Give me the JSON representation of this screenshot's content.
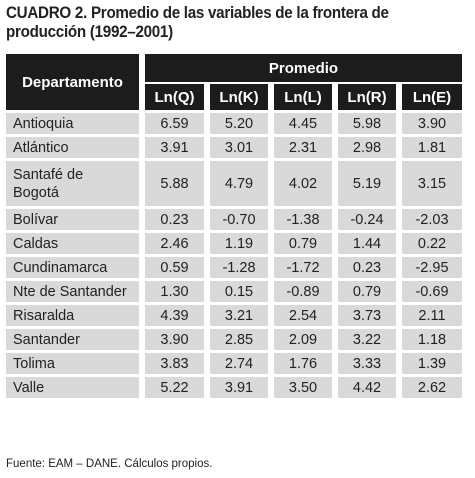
{
  "title": {
    "lead": "CUADRO 2.",
    "text": " Promedio de las variables de la frontera de producción (1992–2001)"
  },
  "table": {
    "row_header": "Departamento",
    "group_header": "Promedio",
    "columns": [
      "Ln(Q)",
      "Ln(K)",
      "Ln(L)",
      "Ln(R)",
      "Ln(E)"
    ],
    "rows": [
      {
        "name": "Antioquia",
        "values": [
          "6.59",
          "5.20",
          "4.45",
          "5.98",
          "3.90"
        ]
      },
      {
        "name": "Atlántico",
        "values": [
          "3.91",
          "3.01",
          "2.31",
          "2.98",
          "1.81"
        ]
      },
      {
        "name": "Santafé de Bogotá",
        "values": [
          "5.88",
          "4.79",
          "4.02",
          "5.19",
          "3.15"
        ]
      },
      {
        "name": "Bolívar",
        "values": [
          "0.23",
          "-0.70",
          "-1.38",
          "-0.24",
          "-2.03"
        ]
      },
      {
        "name": "Caldas",
        "values": [
          "2.46",
          "1.19",
          "0.79",
          "1.44",
          "0.22"
        ]
      },
      {
        "name": "Cundinamarca",
        "values": [
          "0.59",
          "-1.28",
          "-1.72",
          "0.23",
          "-2.95"
        ]
      },
      {
        "name": "Nte de Santander",
        "values": [
          "1.30",
          "0.15",
          "-0.89",
          "0.79",
          "-0.69"
        ]
      },
      {
        "name": "Risaralda",
        "values": [
          "4.39",
          "3.21",
          "2.54",
          "3.73",
          "2.11"
        ]
      },
      {
        "name": "Santander",
        "values": [
          "3.90",
          "2.85",
          "2.09",
          "3.22",
          "1.18"
        ]
      },
      {
        "name": "Tolima",
        "values": [
          "3.83",
          "2.74",
          "1.76",
          "3.33",
          "1.39"
        ]
      },
      {
        "name": "Valle",
        "values": [
          "5.22",
          "3.91",
          "3.50",
          "4.42",
          "2.62"
        ]
      }
    ]
  },
  "source": "Fuente: EAM – DANE. Cálculos propios."
}
